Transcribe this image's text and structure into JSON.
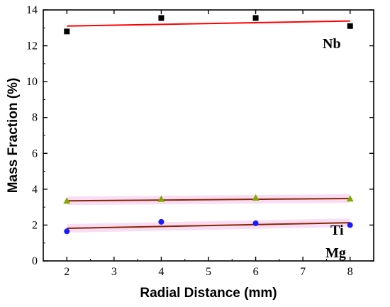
{
  "chart_data": {
    "type": "scatter",
    "xlabel": "Radial Distance (mm)",
    "ylabel": "Mass Fraction (%)",
    "xlim": [
      1.5,
      8.5
    ],
    "ylim": [
      0,
      14
    ],
    "xticks": [
      "2",
      "3",
      "4",
      "5",
      "6",
      "7",
      "8"
    ],
    "yticks": [
      "0",
      "2",
      "4",
      "6",
      "8",
      "10",
      "12",
      "14"
    ],
    "grid": false,
    "series": [
      {
        "name": "Nb",
        "marker": "square",
        "color": "#000000",
        "x": [
          2,
          4,
          6,
          8
        ],
        "y": [
          12.8,
          13.55,
          13.55,
          13.1
        ],
        "fit": {
          "color": "#ff0000",
          "y_at_2": 13.1,
          "y_at_8": 13.38
        }
      },
      {
        "name": "Ti",
        "marker": "triangle",
        "color": "#7fa800",
        "x": [
          2,
          4,
          6,
          8
        ],
        "y": [
          3.35,
          3.45,
          3.52,
          3.47
        ],
        "fit": {
          "color": "#8b2500",
          "y_at_2": 3.35,
          "y_at_8": 3.48
        }
      },
      {
        "name": "Mg",
        "marker": "circle",
        "color": "#1a1aff",
        "x": [
          2,
          4,
          6,
          8
        ],
        "y": [
          1.65,
          2.18,
          2.1,
          2.0
        ],
        "fit": {
          "color": "#8b2500",
          "y_at_2": 1.82,
          "y_at_8": 2.13
        }
      }
    ]
  }
}
